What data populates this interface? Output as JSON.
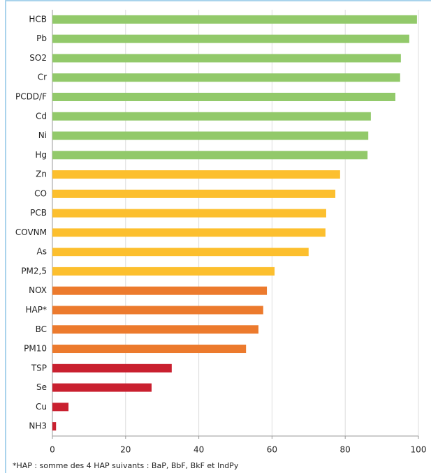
{
  "chart_data": {
    "type": "bar",
    "orientation": "horizontal",
    "categories": [
      "HCB",
      "Pb",
      "SO2",
      "Cr",
      "PCDD/F",
      "Cd",
      "Ni",
      "Hg",
      "Zn",
      "CO",
      "PCB",
      "COVNM",
      "As",
      "PM2,5",
      "NOX",
      "HAP*",
      "BC",
      "PM10",
      "TSP",
      "Se",
      "Cu",
      "NH3"
    ],
    "values": [
      99.6,
      97.5,
      95.2,
      95,
      93.7,
      87,
      86.3,
      86.1,
      78.6,
      77.3,
      74.8,
      74.6,
      70,
      60.7,
      58.6,
      57.6,
      56.3,
      52.9,
      32.6,
      27.1,
      4.4,
      1
    ],
    "colors": [
      "#92c96a",
      "#92c96a",
      "#92c96a",
      "#92c96a",
      "#92c96a",
      "#92c96a",
      "#92c96a",
      "#92c96a",
      "#fcbf2e",
      "#fcbf2e",
      "#fcbf2e",
      "#fcbf2e",
      "#fcbf2e",
      "#fcbf2e",
      "#ec7a2d",
      "#ec7a2d",
      "#ec7a2d",
      "#ec7a2d",
      "#c9202f",
      "#c9202f",
      "#c9202f",
      "#c9202f"
    ],
    "xlim": [
      0,
      100
    ],
    "xticks": [
      0,
      20,
      40,
      60,
      80,
      100
    ],
    "grid": true,
    "note": "*HAP : somme des 4 HAP suivants : BaP, BbF, BkF et IndPy"
  }
}
